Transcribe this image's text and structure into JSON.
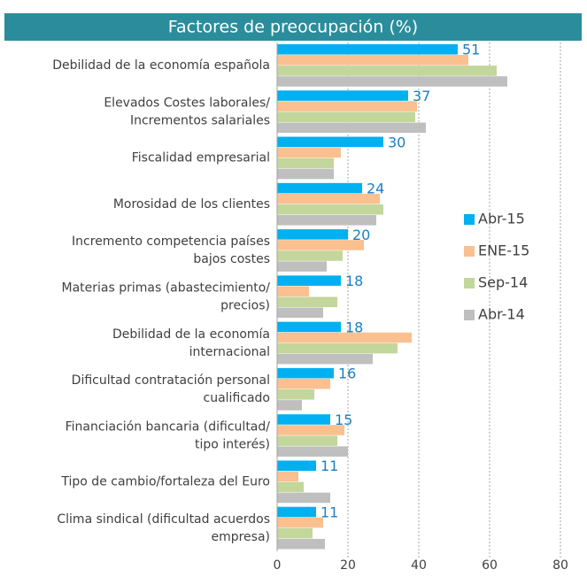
{
  "chart_data": {
    "type": "barh",
    "title": "Factores de preocupación (%)",
    "categories": [
      [
        "Debilidad de la economía española"
      ],
      [
        "Elevados Costes laborales/",
        "Incrementos salariales"
      ],
      [
        "Fiscalidad empresarial"
      ],
      [
        "Morosidad de los clientes"
      ],
      [
        "Incremento competencia países",
        "bajos costes"
      ],
      [
        "Materias primas (abastecimiento/",
        "precios)"
      ],
      [
        "Debilidad de la economía",
        "internacional"
      ],
      [
        "Dificultad contratación personal",
        "cualificado"
      ],
      [
        "Financiación bancaria (dificultad/",
        "tipo interés)"
      ],
      [
        "Tipo de cambio/fortaleza del Euro"
      ],
      [
        "Clima sindical (dificultad acuerdos",
        "empresa)"
      ]
    ],
    "series": [
      {
        "name": "Abr-15",
        "color": "#00b0f0",
        "values": [
          51,
          37,
          30,
          24,
          20,
          18,
          18,
          16,
          15,
          11,
          11
        ]
      },
      {
        "name": "ENE-15",
        "color": "#fac090",
        "values": [
          54,
          39.5,
          18,
          29,
          24.5,
          9,
          38,
          15,
          19,
          6,
          13
        ]
      },
      {
        "name": "Sep-14",
        "color": "#c3d69b",
        "values": [
          62,
          39,
          16,
          30,
          18.5,
          17,
          34,
          10.5,
          17,
          7.5,
          10
        ]
      },
      {
        "name": "Abr-14",
        "color": "#bfbfbf",
        "values": [
          65,
          42,
          16,
          28,
          14,
          13,
          27,
          7,
          20,
          15,
          13.5
        ]
      }
    ],
    "labeled_series": 0,
    "xlim": [
      0,
      80
    ],
    "xticks": [
      0,
      20,
      40,
      60,
      80
    ],
    "grid": true,
    "legend": "right"
  }
}
